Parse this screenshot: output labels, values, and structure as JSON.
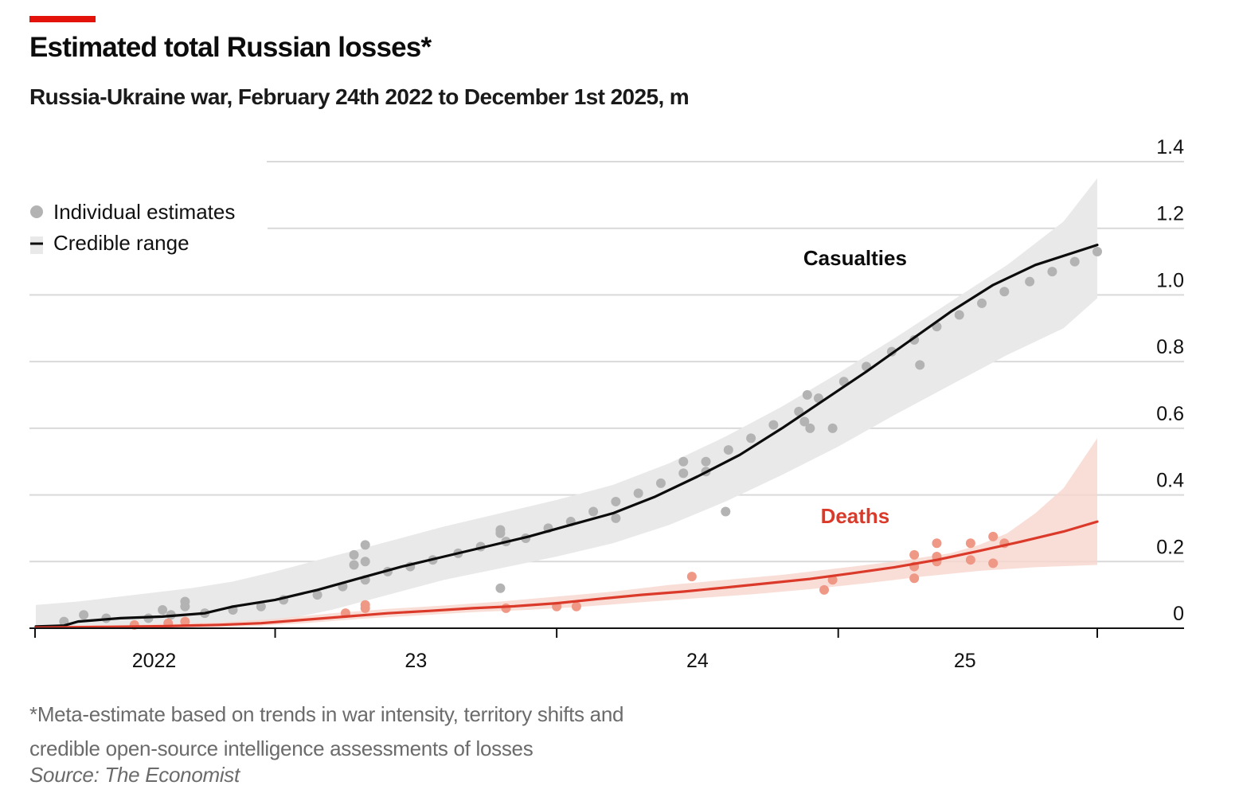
{
  "colors": {
    "accent": "#e3120b",
    "casualties_line": "#0c0c0c",
    "casualties_band": "#e9e9e9",
    "casualties_dots": "#b3b3b3",
    "deaths_line": "#db3a2a",
    "deaths_band": "#f8d6cd",
    "deaths_dots": "#ef9886",
    "grid": "#d9d9d9"
  },
  "title": "Estimated total Russian losses*",
  "subtitle": "Russia-Ukraine war, February 24th 2022 to December 1st 2025, m",
  "footnote": "*Meta-estimate based on trends in war intensity, territory shifts and credible open-source intelligence assessments of losses",
  "source": "Source: The Economist",
  "chart_data": {
    "type": "line",
    "x_unit": "years since Jan 1st 2022",
    "xlim": [
      0.15,
      3.92
    ],
    "ylim": [
      0,
      1.4
    ],
    "y_ticks": [
      0,
      0.2,
      0.4,
      0.6,
      0.8,
      1.0,
      1.2,
      1.4
    ],
    "y_tick_labels": [
      "0",
      "0.2",
      "0.4",
      "0.6",
      "0.8",
      "1.0",
      "1.2",
      "1.4"
    ],
    "x_tick_positions": [
      1,
      2,
      3
    ],
    "x_tick_labels": [
      {
        "text": "2022",
        "x": 0.57
      },
      {
        "text": "23",
        "x": 1.5
      },
      {
        "text": "24",
        "x": 2.5
      },
      {
        "text": "25",
        "x": 3.45
      }
    ],
    "legend": [
      {
        "label": "Individual estimates",
        "marker": "dot"
      },
      {
        "label": "Credible range",
        "marker": "line-band"
      }
    ],
    "series": [
      {
        "name": "Casualties",
        "label_pos": [
          3.06,
          1.09
        ],
        "line": [
          [
            0.15,
            0.005
          ],
          [
            0.25,
            0.008
          ],
          [
            0.3,
            0.02
          ],
          [
            0.45,
            0.03
          ],
          [
            0.6,
            0.035
          ],
          [
            0.75,
            0.045
          ],
          [
            0.85,
            0.065
          ],
          [
            1.0,
            0.085
          ],
          [
            1.15,
            0.115
          ],
          [
            1.3,
            0.15
          ],
          [
            1.45,
            0.185
          ],
          [
            1.6,
            0.215
          ],
          [
            1.75,
            0.245
          ],
          [
            1.9,
            0.275
          ],
          [
            2.05,
            0.31
          ],
          [
            2.2,
            0.345
          ],
          [
            2.35,
            0.395
          ],
          [
            2.5,
            0.455
          ],
          [
            2.65,
            0.52
          ],
          [
            2.8,
            0.6
          ],
          [
            2.95,
            0.685
          ],
          [
            3.1,
            0.77
          ],
          [
            3.25,
            0.86
          ],
          [
            3.4,
            0.95
          ],
          [
            3.55,
            1.03
          ],
          [
            3.7,
            1.09
          ],
          [
            3.92,
            1.15
          ]
        ],
        "band_upper": [
          [
            0.15,
            0.07
          ],
          [
            0.3,
            0.08
          ],
          [
            0.5,
            0.1
          ],
          [
            0.7,
            0.12
          ],
          [
            0.85,
            0.14
          ],
          [
            1.0,
            0.17
          ],
          [
            1.2,
            0.215
          ],
          [
            1.4,
            0.26
          ],
          [
            1.6,
            0.305
          ],
          [
            1.8,
            0.345
          ],
          [
            2.0,
            0.385
          ],
          [
            2.2,
            0.43
          ],
          [
            2.4,
            0.495
          ],
          [
            2.6,
            0.575
          ],
          [
            2.8,
            0.665
          ],
          [
            3.0,
            0.765
          ],
          [
            3.2,
            0.87
          ],
          [
            3.4,
            0.98
          ],
          [
            3.6,
            1.09
          ],
          [
            3.8,
            1.22
          ],
          [
            3.92,
            1.35
          ]
        ],
        "band_lower": [
          [
            0.15,
            0.0
          ],
          [
            0.5,
            0.0
          ],
          [
            0.7,
            0.0
          ],
          [
            0.85,
            0.005
          ],
          [
            1.0,
            0.02
          ],
          [
            1.2,
            0.055
          ],
          [
            1.4,
            0.1
          ],
          [
            1.6,
            0.145
          ],
          [
            1.8,
            0.18
          ],
          [
            2.0,
            0.215
          ],
          [
            2.2,
            0.255
          ],
          [
            2.4,
            0.31
          ],
          [
            2.6,
            0.38
          ],
          [
            2.8,
            0.46
          ],
          [
            3.0,
            0.545
          ],
          [
            3.2,
            0.64
          ],
          [
            3.4,
            0.73
          ],
          [
            3.6,
            0.82
          ],
          [
            3.8,
            0.9
          ],
          [
            3.92,
            0.99
          ]
        ],
        "points": [
          [
            0.25,
            0.02
          ],
          [
            0.32,
            0.04
          ],
          [
            0.4,
            0.03
          ],
          [
            0.55,
            0.03
          ],
          [
            0.6,
            0.055
          ],
          [
            0.63,
            0.04
          ],
          [
            0.68,
            0.065
          ],
          [
            0.68,
            0.08
          ],
          [
            0.75,
            0.045
          ],
          [
            0.85,
            0.055
          ],
          [
            0.95,
            0.065
          ],
          [
            1.03,
            0.085
          ],
          [
            1.15,
            0.1
          ],
          [
            1.24,
            0.125
          ],
          [
            1.28,
            0.22
          ],
          [
            1.28,
            0.19
          ],
          [
            1.32,
            0.25
          ],
          [
            1.32,
            0.2
          ],
          [
            1.32,
            0.145
          ],
          [
            1.4,
            0.17
          ],
          [
            1.48,
            0.185
          ],
          [
            1.56,
            0.205
          ],
          [
            1.65,
            0.225
          ],
          [
            1.73,
            0.245
          ],
          [
            1.8,
            0.295
          ],
          [
            1.8,
            0.285
          ],
          [
            1.8,
            0.12
          ],
          [
            1.82,
            0.26
          ],
          [
            1.89,
            0.27
          ],
          [
            1.97,
            0.3
          ],
          [
            2.05,
            0.32
          ],
          [
            2.13,
            0.35
          ],
          [
            2.21,
            0.33
          ],
          [
            2.21,
            0.38
          ],
          [
            2.29,
            0.405
          ],
          [
            2.37,
            0.435
          ],
          [
            2.45,
            0.5
          ],
          [
            2.45,
            0.465
          ],
          [
            2.53,
            0.5
          ],
          [
            2.53,
            0.47
          ],
          [
            2.6,
            0.35
          ],
          [
            2.61,
            0.535
          ],
          [
            2.69,
            0.57
          ],
          [
            2.77,
            0.61
          ],
          [
            2.86,
            0.65
          ],
          [
            2.88,
            0.62
          ],
          [
            2.89,
            0.7
          ],
          [
            2.9,
            0.6
          ],
          [
            2.93,
            0.69
          ],
          [
            2.98,
            0.6
          ],
          [
            3.02,
            0.74
          ],
          [
            3.1,
            0.785
          ],
          [
            3.19,
            0.83
          ],
          [
            3.27,
            0.865
          ],
          [
            3.29,
            0.79
          ],
          [
            3.35,
            0.905
          ],
          [
            3.43,
            0.94
          ],
          [
            3.51,
            0.975
          ],
          [
            3.59,
            1.01
          ],
          [
            3.68,
            1.04
          ],
          [
            3.76,
            1.07
          ],
          [
            3.84,
            1.1
          ],
          [
            3.92,
            1.13
          ]
        ]
      },
      {
        "name": "Deaths",
        "label_pos": [
          3.06,
          0.315
        ],
        "line": [
          [
            0.15,
            0.002
          ],
          [
            0.4,
            0.004
          ],
          [
            0.6,
            0.006
          ],
          [
            0.8,
            0.01
          ],
          [
            0.95,
            0.015
          ],
          [
            1.1,
            0.025
          ],
          [
            1.25,
            0.035
          ],
          [
            1.4,
            0.045
          ],
          [
            1.55,
            0.052
          ],
          [
            1.7,
            0.06
          ],
          [
            1.85,
            0.066
          ],
          [
            2.0,
            0.075
          ],
          [
            2.15,
            0.088
          ],
          [
            2.3,
            0.1
          ],
          [
            2.45,
            0.11
          ],
          [
            2.6,
            0.122
          ],
          [
            2.75,
            0.135
          ],
          [
            2.9,
            0.148
          ],
          [
            3.05,
            0.165
          ],
          [
            3.2,
            0.183
          ],
          [
            3.35,
            0.205
          ],
          [
            3.5,
            0.232
          ],
          [
            3.65,
            0.26
          ],
          [
            3.8,
            0.29
          ],
          [
            3.92,
            0.32
          ]
        ],
        "band_upper": [
          [
            0.15,
            0.008
          ],
          [
            0.5,
            0.01
          ],
          [
            0.8,
            0.018
          ],
          [
            1.0,
            0.028
          ],
          [
            1.2,
            0.045
          ],
          [
            1.4,
            0.058
          ],
          [
            1.6,
            0.068
          ],
          [
            1.8,
            0.08
          ],
          [
            2.0,
            0.095
          ],
          [
            2.2,
            0.11
          ],
          [
            2.4,
            0.13
          ],
          [
            2.6,
            0.145
          ],
          [
            2.8,
            0.16
          ],
          [
            3.0,
            0.18
          ],
          [
            3.2,
            0.2
          ],
          [
            3.4,
            0.225
          ],
          [
            3.5,
            0.25
          ],
          [
            3.6,
            0.285
          ],
          [
            3.7,
            0.345
          ],
          [
            3.8,
            0.42
          ],
          [
            3.92,
            0.57
          ]
        ],
        "band_lower": [
          [
            0.15,
            0.0
          ],
          [
            0.6,
            0.0
          ],
          [
            0.9,
            0.005
          ],
          [
            1.1,
            0.015
          ],
          [
            1.3,
            0.028
          ],
          [
            1.5,
            0.038
          ],
          [
            1.7,
            0.048
          ],
          [
            1.9,
            0.055
          ],
          [
            2.1,
            0.065
          ],
          [
            2.3,
            0.078
          ],
          [
            2.5,
            0.09
          ],
          [
            2.7,
            0.102
          ],
          [
            2.9,
            0.117
          ],
          [
            3.1,
            0.135
          ],
          [
            3.3,
            0.155
          ],
          [
            3.5,
            0.172
          ],
          [
            3.7,
            0.183
          ],
          [
            3.92,
            0.19
          ]
        ],
        "points": [
          [
            0.5,
            0.01
          ],
          [
            0.62,
            0.015
          ],
          [
            0.68,
            0.02
          ],
          [
            1.25,
            0.045
          ],
          [
            1.32,
            0.07
          ],
          [
            1.32,
            0.06
          ],
          [
            1.82,
            0.06
          ],
          [
            2.0,
            0.065
          ],
          [
            2.07,
            0.065
          ],
          [
            2.48,
            0.155
          ],
          [
            2.95,
            0.115
          ],
          [
            2.98,
            0.145
          ],
          [
            3.27,
            0.185
          ],
          [
            3.27,
            0.22
          ],
          [
            3.27,
            0.15
          ],
          [
            3.35,
            0.215
          ],
          [
            3.35,
            0.255
          ],
          [
            3.35,
            0.2
          ],
          [
            3.47,
            0.255
          ],
          [
            3.47,
            0.205
          ],
          [
            3.55,
            0.275
          ],
          [
            3.55,
            0.195
          ],
          [
            3.59,
            0.255
          ]
        ]
      }
    ]
  }
}
